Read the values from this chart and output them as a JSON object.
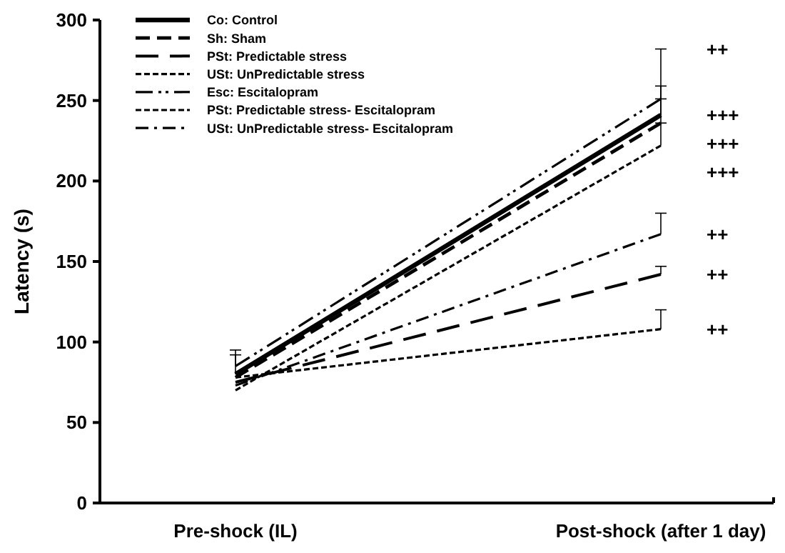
{
  "chart_data": {
    "type": "line",
    "ylabel": "Latency (s)",
    "categories": [
      "Pre-shock (IL)",
      "Post-shock (after 1 day)"
    ],
    "ylim": [
      0,
      300
    ],
    "yticks": [
      0,
      50,
      100,
      150,
      200,
      250,
      300
    ],
    "legend": "top left",
    "marker": "none",
    "grid": false,
    "series": [
      {
        "name": "Co: Control",
        "color": "#000000",
        "line_style": "solid",
        "values": [
          80,
          241
        ],
        "errors": [
          [
            80,
            92
          ],
          [
            241,
            259
          ]
        ]
      },
      {
        "name": "Sh: Sham",
        "color": "#000000",
        "line_style": "dashed",
        "values": [
          78,
          236
        ],
        "errors": [
          null,
          [
            236,
            251
          ]
        ]
      },
      {
        "name": "PSt: Predictable stress",
        "color": "#000000",
        "line_style": "longdash",
        "values": [
          75,
          142
        ],
        "errors": [
          null,
          [
            142,
            147
          ]
        ]
      },
      {
        "name": "USt: UnPredictable stress",
        "color": "#000000",
        "line_style": "dotted",
        "values": [
          78,
          108
        ],
        "errors": [
          null,
          [
            108,
            120
          ]
        ]
      },
      {
        "name": "Esc: Escitalopram",
        "color": "#000000",
        "line_style": "dashdotdot",
        "values": [
          85,
          251
        ],
        "errors": [
          [
            85,
            95
          ],
          [
            251,
            282
          ]
        ]
      },
      {
        "name": "PSt: Predictable stress- Escitalopram",
        "color": "#000000",
        "line_style": "dotted",
        "values": [
          70,
          222
        ],
        "errors": [
          null,
          [
            222,
            236
          ]
        ]
      },
      {
        "name": "USt: UnPredictable stress- Escitalopram",
        "color": "#000000",
        "line_style": "dashdot",
        "values": [
          73,
          167
        ],
        "errors": [
          null,
          [
            167,
            180
          ]
        ]
      }
    ],
    "annotations": [
      "++",
      "+++",
      "+++",
      "+++",
      "++",
      "++",
      "++"
    ]
  }
}
